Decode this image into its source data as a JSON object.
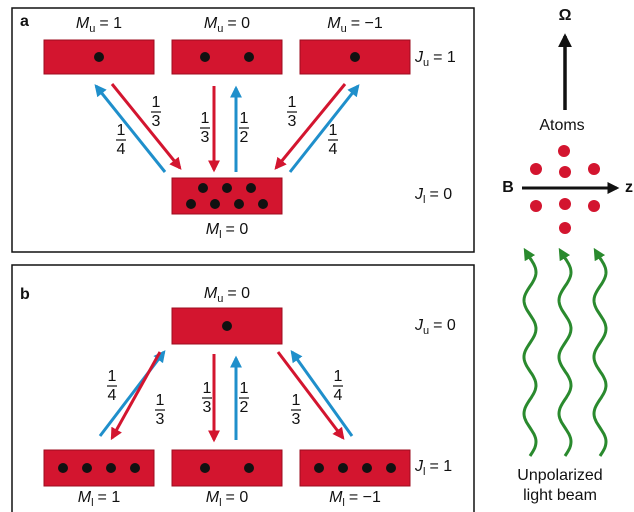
{
  "panel_a": {
    "label": "a",
    "upper_states": [
      {
        "var": "M",
        "sub": "u",
        "rest": "= 1"
      },
      {
        "var": "M",
        "sub": "u",
        "rest": "= 0"
      },
      {
        "var": "M",
        "sub": "u",
        "rest": "= −1"
      }
    ],
    "upper_level": {
      "var": "J",
      "sub": "u",
      "rest": "= 1"
    },
    "lower_states": [
      {
        "var": "M",
        "sub": "l",
        "rest": "= 0"
      }
    ],
    "lower_level": {
      "var": "J",
      "sub": "l",
      "rest": "= 0"
    },
    "branching": [
      {
        "num": "1",
        "den": "3"
      },
      {
        "num": "1",
        "den": "4"
      },
      {
        "num": "1",
        "den": "3"
      },
      {
        "num": "1",
        "den": "2"
      },
      {
        "num": "1",
        "den": "3"
      },
      {
        "num": "1",
        "den": "4"
      }
    ]
  },
  "panel_b": {
    "label": "b",
    "upper_states": [
      {
        "var": "M",
        "sub": "u",
        "rest": "= 0"
      }
    ],
    "upper_level": {
      "var": "J",
      "sub": "u",
      "rest": "= 0"
    },
    "lower_states": [
      {
        "var": "M",
        "sub": "l",
        "rest": "= 1"
      },
      {
        "var": "M",
        "sub": "l",
        "rest": "= 0"
      },
      {
        "var": "M",
        "sub": "l",
        "rest": "= −1"
      }
    ],
    "lower_level": {
      "var": "J",
      "sub": "l",
      "rest": "= 1"
    },
    "branching": [
      {
        "num": "1",
        "den": "4"
      },
      {
        "num": "1",
        "den": "3"
      },
      {
        "num": "1",
        "den": "3"
      },
      {
        "num": "1",
        "den": "2"
      },
      {
        "num": "1",
        "den": "3"
      },
      {
        "num": "1",
        "den": "4"
      }
    ]
  },
  "setup": {
    "rotation": "Ω",
    "atoms": "Atoms",
    "field": "B",
    "axis": "z",
    "beam": [
      "Unpolarized",
      "light beam"
    ]
  }
}
